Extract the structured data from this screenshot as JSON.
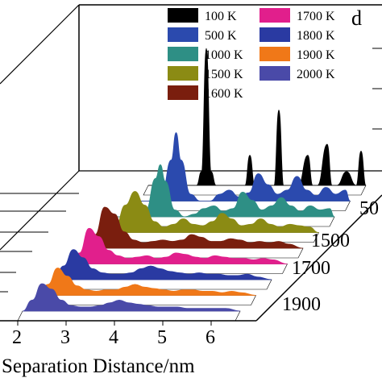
{
  "chart_data": {
    "type": "area",
    "panel_label": "d",
    "xlabel": "Separation Distance/nm",
    "x_ticks": [
      "2",
      "3",
      "4",
      "5",
      "6"
    ],
    "depth_ticks": [
      "50",
      "1500",
      "1700",
      "1900"
    ],
    "legend": [
      "100 K",
      "500 K",
      "1000 K",
      "1500 K",
      "1600 K",
      "1700 K",
      "1800 K",
      "1900 K",
      "2000 K"
    ],
    "series": [
      {
        "name": "100 K",
        "color": "#000000",
        "x": [
          2.1,
          2.3,
          2.5,
          2.7,
          2.9,
          3.1,
          3.2,
          3.3,
          3.4,
          3.5,
          3.7,
          3.9,
          4.1,
          4.2,
          4.3,
          4.5,
          4.7,
          4.8,
          4.9,
          5.0,
          5.2,
          5.4,
          5.5,
          5.6,
          5.8,
          5.9,
          6.0,
          6.2,
          6.4,
          6.5,
          6.6
        ],
        "y": [
          0,
          0,
          0,
          0,
          0,
          0,
          0.1,
          1.0,
          0.1,
          0,
          0,
          0,
          0,
          0.22,
          0,
          0,
          0,
          0.55,
          0,
          0,
          0,
          0.22,
          0,
          0,
          0.3,
          0,
          0,
          0.1,
          0,
          0.25,
          0
        ]
      },
      {
        "name": "500 K",
        "color": "#2b4aae",
        "x": [
          2.1,
          2.4,
          2.7,
          2.9,
          3.0,
          3.1,
          3.3,
          3.5,
          3.7,
          3.9,
          4.1,
          4.3,
          4.5,
          4.7,
          4.9,
          5.1,
          5.3,
          5.5,
          5.7,
          5.9,
          6.1,
          6.3,
          6.5,
          6.6
        ],
        "y": [
          0,
          0,
          0.05,
          0.3,
          0.5,
          0.3,
          0.05,
          0,
          0,
          0.05,
          0.08,
          0.03,
          0.06,
          0.2,
          0.12,
          0.05,
          0.08,
          0.18,
          0.08,
          0.04,
          0.1,
          0.05,
          0.08,
          0
        ]
      },
      {
        "name": "1000 K",
        "color": "#2e8f85",
        "x": [
          2.1,
          2.4,
          2.7,
          2.9,
          3.0,
          3.1,
          3.3,
          3.5,
          3.7,
          3.9,
          4.1,
          4.3,
          4.5,
          4.7,
          4.9,
          5.1,
          5.3,
          5.5,
          5.7,
          5.9,
          6.1,
          6.3,
          6.5,
          6.6
        ],
        "y": [
          0,
          0,
          0.05,
          0.28,
          0.38,
          0.26,
          0.05,
          0,
          0.02,
          0.06,
          0.08,
          0.04,
          0.06,
          0.18,
          0.12,
          0.05,
          0.08,
          0.14,
          0.08,
          0.04,
          0.08,
          0.05,
          0.06,
          0
        ]
      },
      {
        "name": "1500 K",
        "color": "#8b8b14",
        "x": [
          2.1,
          2.4,
          2.6,
          2.8,
          3.0,
          3.2,
          3.4,
          3.6,
          3.8,
          4.0,
          4.2,
          4.4,
          4.6,
          4.8,
          5.0,
          5.2,
          5.4,
          5.6,
          5.8,
          6.0,
          6.2,
          6.4,
          6.6
        ],
        "y": [
          0,
          0.05,
          0.2,
          0.3,
          0.2,
          0.08,
          0.04,
          0.06,
          0.1,
          0.06,
          0.05,
          0.08,
          0.14,
          0.1,
          0.05,
          0.06,
          0.1,
          0.06,
          0.04,
          0.06,
          0.05,
          0.04,
          0
        ]
      },
      {
        "name": "1600 K",
        "color": "#7a1e0e",
        "x": [
          2.1,
          2.3,
          2.5,
          2.7,
          2.9,
          3.1,
          3.3,
          3.5,
          3.7,
          3.9,
          4.1,
          4.3,
          4.5,
          4.7,
          4.9,
          5.1,
          5.3,
          5.5,
          5.7,
          5.9,
          6.1,
          6.3,
          6.6
        ],
        "y": [
          0,
          0.1,
          0.3,
          0.25,
          0.12,
          0.06,
          0.04,
          0.05,
          0.06,
          0.05,
          0.06,
          0.1,
          0.08,
          0.05,
          0.05,
          0.07,
          0.06,
          0.04,
          0.05,
          0.04,
          0.05,
          0.03,
          0
        ]
      },
      {
        "name": "1700 K",
        "color": "#e11f8c",
        "x": [
          2.1,
          2.3,
          2.5,
          2.7,
          2.9,
          3.1,
          3.3,
          3.5,
          3.7,
          3.9,
          4.1,
          4.3,
          4.5,
          4.7,
          4.9,
          5.1,
          5.3,
          5.5,
          5.7,
          5.9,
          6.1,
          6.3,
          6.6
        ],
        "y": [
          0,
          0.08,
          0.26,
          0.2,
          0.1,
          0.06,
          0.04,
          0.05,
          0.06,
          0.04,
          0.05,
          0.08,
          0.07,
          0.05,
          0.04,
          0.06,
          0.05,
          0.04,
          0.04,
          0.03,
          0.04,
          0.03,
          0
        ]
      },
      {
        "name": "1800 K",
        "color": "#2a3aa2",
        "x": [
          2.1,
          2.3,
          2.5,
          2.7,
          2.9,
          3.1,
          3.3,
          3.5,
          3.7,
          3.9,
          4.1,
          4.3,
          4.5,
          4.7,
          4.9,
          5.1,
          5.3,
          5.5,
          5.7,
          5.9,
          6.1,
          6.3,
          6.6
        ],
        "y": [
          0,
          0.1,
          0.22,
          0.16,
          0.08,
          0.05,
          0.04,
          0.04,
          0.05,
          0.08,
          0.1,
          0.08,
          0.06,
          0.05,
          0.04,
          0.05,
          0.04,
          0.04,
          0.03,
          0.03,
          0.04,
          0.02,
          0
        ]
      },
      {
        "name": "1900 K",
        "color": "#f07818",
        "x": [
          2.1,
          2.3,
          2.5,
          2.7,
          2.9,
          3.1,
          3.3,
          3.5,
          3.7,
          3.9,
          4.1,
          4.3,
          4.5,
          4.7,
          4.9,
          5.1,
          5.3,
          5.5,
          5.7,
          5.9,
          6.1,
          6.3,
          6.6
        ],
        "y": [
          0,
          0.08,
          0.2,
          0.14,
          0.07,
          0.04,
          0.03,
          0.04,
          0.04,
          0.06,
          0.08,
          0.06,
          0.05,
          0.04,
          0.03,
          0.04,
          0.04,
          0.03,
          0.03,
          0.02,
          0.03,
          0.02,
          0
        ]
      },
      {
        "name": "2000 K",
        "color": "#4a4aa8",
        "x": [
          2.1,
          2.3,
          2.5,
          2.7,
          2.9,
          3.1,
          3.3,
          3.5,
          3.7,
          3.9,
          4.1,
          4.3,
          4.5,
          4.7,
          4.9,
          5.1,
          5.3,
          5.5,
          5.7,
          5.9,
          6.1,
          6.3,
          6.6
        ],
        "y": [
          0,
          0.08,
          0.2,
          0.16,
          0.08,
          0.04,
          0.03,
          0.03,
          0.04,
          0.06,
          0.08,
          0.06,
          0.05,
          0.04,
          0.03,
          0.03,
          0.03,
          0.02,
          0.02,
          0.02,
          0.02,
          0.02,
          0
        ]
      }
    ]
  }
}
